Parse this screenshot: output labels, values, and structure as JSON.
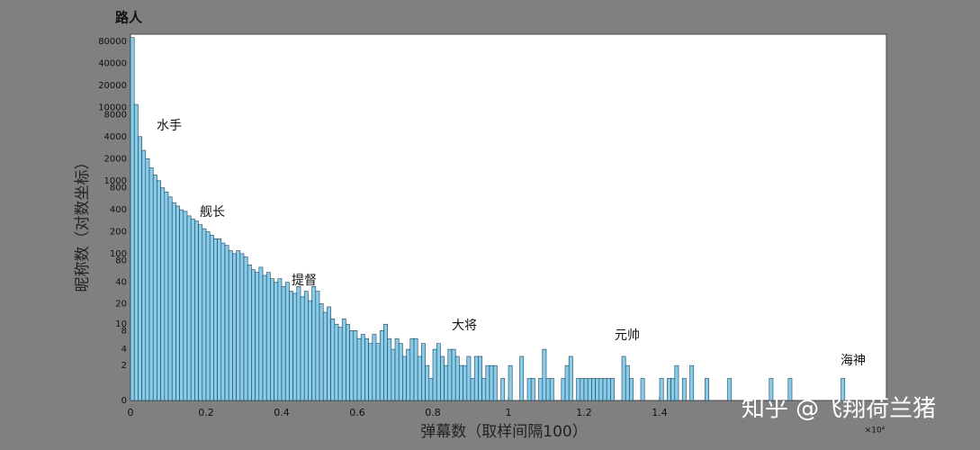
{
  "chart_data": {
    "type": "histogram",
    "title": "路人",
    "xlabel": "弹幕数（取样间隔100）",
    "ylabel": "昵称数（对数坐标）",
    "x_multiplier": "×10⁴",
    "watermark": "知乎 @飞翔荷兰猪",
    "annotations": [
      "水手",
      "舰长",
      "提督",
      "大将",
      "元帅",
      "海神"
    ],
    "yscale": "log1p",
    "color": "#87cdea",
    "edgecolor": "#1f3f55",
    "xlim": [
      0,
      20000
    ],
    "ylim": [
      0,
      100000
    ],
    "xticks": [
      0,
      {
        "value": 2000,
        "label": "0.2"
      },
      {
        "value": 4000,
        "label": "0.4"
      },
      {
        "value": 6000,
        "label": "0.6"
      },
      {
        "value": 8000,
        "label": "0.8"
      },
      {
        "value": 10000,
        "label": "1"
      },
      {
        "value": 12000,
        "label": "1.2"
      },
      {
        "value": 14000,
        "label": "1.4"
      }
    ],
    "yticks": [
      0,
      2,
      4,
      8,
      10,
      20,
      40,
      80,
      100,
      200,
      400,
      800,
      1000,
      2000,
      4000,
      8000,
      10000,
      20000,
      40000,
      80000
    ],
    "bins": [
      0,
      100,
      200,
      300,
      400,
      500,
      600,
      700,
      800,
      900,
      1000,
      1100,
      1200,
      1300,
      1400,
      1500,
      1600,
      1700,
      1800,
      1900,
      2000,
      2100,
      2200,
      2300,
      2400,
      2500,
      2600,
      2700,
      2800,
      2900,
      3000,
      3100,
      3200,
      3300,
      3400,
      3500,
      3600,
      3700,
      3800,
      3900,
      4000,
      4100,
      4200,
      4300,
      4400,
      4500,
      4600,
      4700,
      4800,
      4900,
      5000,
      5100,
      5200,
      5300,
      5400,
      5500,
      5600,
      5700,
      5800,
      5900,
      6000,
      6100,
      6200,
      6300,
      6400,
      6500,
      6600,
      6700,
      6800,
      6900,
      7000,
      7100,
      7200,
      7300,
      7400,
      7500,
      7600,
      7700,
      7800,
      7900,
      8000,
      8100,
      8200,
      8300,
      8400,
      8500,
      8600,
      8700,
      8800,
      8900,
      9000,
      9100,
      9200,
      9300,
      9400,
      9500,
      9600,
      9700,
      9800,
      9900,
      10000,
      10100,
      10200,
      10300,
      10400,
      10500,
      10600,
      10700,
      10800,
      10900,
      11000,
      11100,
      11200,
      11300,
      11400,
      11500,
      11600,
      11700,
      11800,
      11900,
      12000,
      12100,
      12200,
      12300,
      12400,
      12500,
      12600,
      12700,
      12800,
      12900,
      13000,
      13100,
      13200,
      13300,
      13400,
      13500,
      13600,
      13700,
      13800,
      13900,
      14000,
      14100,
      14200,
      14300,
      14400,
      14500,
      14600,
      14700,
      14800,
      14900,
      15000,
      15100,
      15200,
      15300,
      15400,
      15500,
      15600,
      15700,
      15800,
      15900,
      16000,
      16100,
      16200,
      16300,
      16400,
      16500,
      16600,
      16700,
      16800,
      16900,
      17000,
      17100,
      17200,
      17300,
      17400,
      17500,
      17600,
      17700,
      17800,
      17900,
      18000,
      18100,
      18200,
      18300,
      18400,
      18500,
      18600,
      18700,
      18800,
      18900,
      19000
    ],
    "values": [
      90000,
      11000,
      4000,
      2600,
      2000,
      1500,
      1200,
      1000,
      800,
      700,
      600,
      500,
      450,
      400,
      380,
      330,
      300,
      280,
      250,
      220,
      200,
      180,
      160,
      160,
      140,
      130,
      110,
      100,
      110,
      100,
      90,
      70,
      60,
      55,
      65,
      50,
      55,
      45,
      40,
      45,
      35,
      40,
      30,
      28,
      35,
      25,
      30,
      22,
      35,
      30,
      20,
      15,
      18,
      12,
      10,
      9,
      12,
      10,
      8,
      8,
      6,
      7,
      6,
      5,
      7,
      5,
      8,
      10,
      6,
      4,
      6,
      5,
      3,
      4,
      6,
      6,
      3,
      5,
      2,
      1,
      4,
      5,
      3,
      2,
      4,
      4,
      3,
      2,
      2,
      3,
      1,
      3,
      3,
      1,
      2,
      2,
      2,
      0,
      1,
      0,
      2,
      0,
      0,
      3,
      0,
      1,
      1,
      0,
      1,
      4,
      1,
      1,
      0,
      0,
      1,
      2,
      3,
      0,
      1,
      1,
      1,
      1,
      1,
      1,
      1,
      1,
      1,
      1,
      0,
      0,
      3,
      2,
      1,
      0,
      0,
      1,
      0,
      0,
      0,
      0,
      1,
      0,
      1,
      1,
      2,
      0,
      1,
      0,
      2,
      0,
      0,
      0,
      1,
      0,
      0,
      0,
      0,
      0,
      1,
      0,
      0,
      0,
      0,
      0,
      0,
      0,
      0,
      0,
      0,
      1,
      0,
      0,
      0,
      0,
      1,
      0,
      0,
      0,
      0,
      0,
      0,
      0,
      0,
      0,
      0,
      0,
      0,
      0,
      1,
      0
    ]
  }
}
